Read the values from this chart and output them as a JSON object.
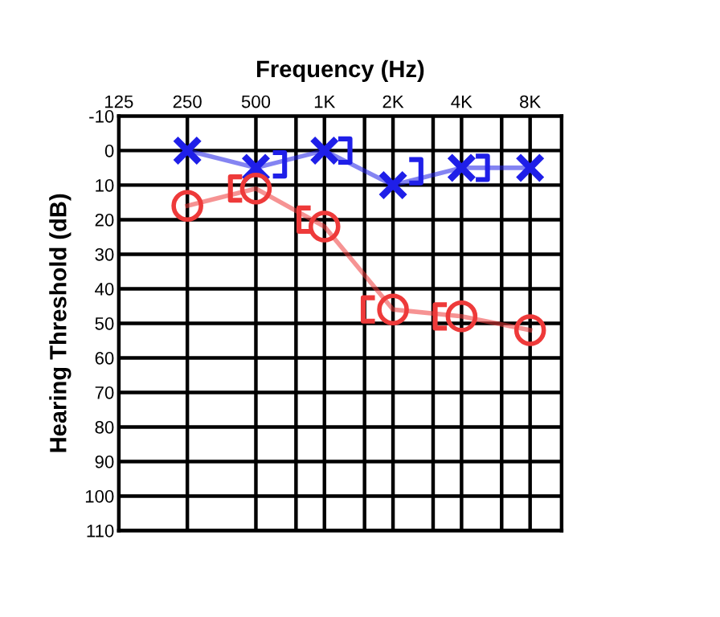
{
  "chart_data": {
    "type": "line",
    "xlabel": "Frequency (Hz)",
    "ylabel": "Hearing Threshold (dB)",
    "log": "x",
    "xlim": [
      125,
      11000
    ],
    "xticks": [
      125,
      250,
      500,
      {
        "value": 750,
        "label": null
      },
      {
        "value": 1000,
        "label": "1K"
      },
      {
        "value": 1500,
        "label": null
      },
      {
        "value": 2000,
        "label": "2K"
      },
      {
        "value": 3000,
        "label": null
      },
      {
        "value": 4000,
        "label": "4K"
      },
      {
        "value": 6000,
        "label": null
      },
      {
        "value": 8000,
        "label": "8K"
      }
    ],
    "ylim": [
      110,
      -10
    ],
    "yticks": [
      -10,
      0,
      10,
      20,
      30,
      40,
      50,
      60,
      70,
      80,
      90,
      100,
      110
    ],
    "grid": true,
    "series": [
      {
        "type": "line",
        "color": "#1f1fe8",
        "marker": "cross",
        "x": [
          250,
          500,
          1000,
          2000,
          4000,
          8000
        ],
        "values": [
          0,
          5,
          0,
          10,
          5,
          5
        ]
      },
      {
        "type": "scatter",
        "color": "#1f1fe8",
        "x": [
          630,
          1220,
          2500,
          4900
        ],
        "values": [
          4,
          0,
          6,
          5
        ]
      },
      {
        "type": "line",
        "color": "#ee3a3a",
        "marker": "circle",
        "x": [
          250,
          500,
          1000,
          2000,
          4000,
          8000
        ],
        "values": [
          16,
          11,
          22,
          46,
          48,
          52
        ]
      },
      {
        "type": "scatter",
        "color": "#ee3a3a",
        "x": [
          410,
          820,
          1570,
          3250
        ],
        "values": [
          11,
          20,
          46,
          48
        ]
      }
    ]
  }
}
